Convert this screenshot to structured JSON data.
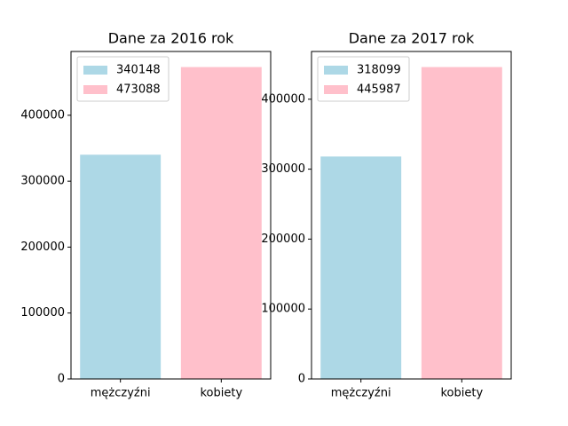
{
  "chart_data": [
    {
      "type": "bar",
      "title": "Dane za 2016 rok",
      "categories": [
        "mężczyźni",
        "kobiety"
      ],
      "values": [
        340148,
        473088
      ],
      "colors": [
        "#add8e6",
        "#ffc0cb"
      ],
      "legend": {
        "entries": [
          "340148",
          "473088"
        ],
        "placement": "upper-left"
      },
      "xlabel": "",
      "ylabel": "",
      "ylim": [
        0,
        496742
      ],
      "yticks": [
        0,
        100000,
        200000,
        300000,
        400000
      ],
      "ytick_labels": [
        "0",
        "100000",
        "200000",
        "300000",
        "400000"
      ],
      "grid": false
    },
    {
      "type": "bar",
      "title": "Dane za 2017 rok",
      "categories": [
        "mężczyźni",
        "kobiety"
      ],
      "values": [
        318099,
        445987
      ],
      "colors": [
        "#add8e6",
        "#ffc0cb"
      ],
      "legend": {
        "entries": [
          "318099",
          "445987"
        ],
        "placement": "upper-left"
      },
      "xlabel": "",
      "ylabel": "",
      "ylim": [
        0,
        468286
      ],
      "yticks": [
        0,
        100000,
        200000,
        300000,
        400000
      ],
      "ytick_labels": [
        "0",
        "100000",
        "200000",
        "300000",
        "400000"
      ],
      "grid": false
    }
  ]
}
